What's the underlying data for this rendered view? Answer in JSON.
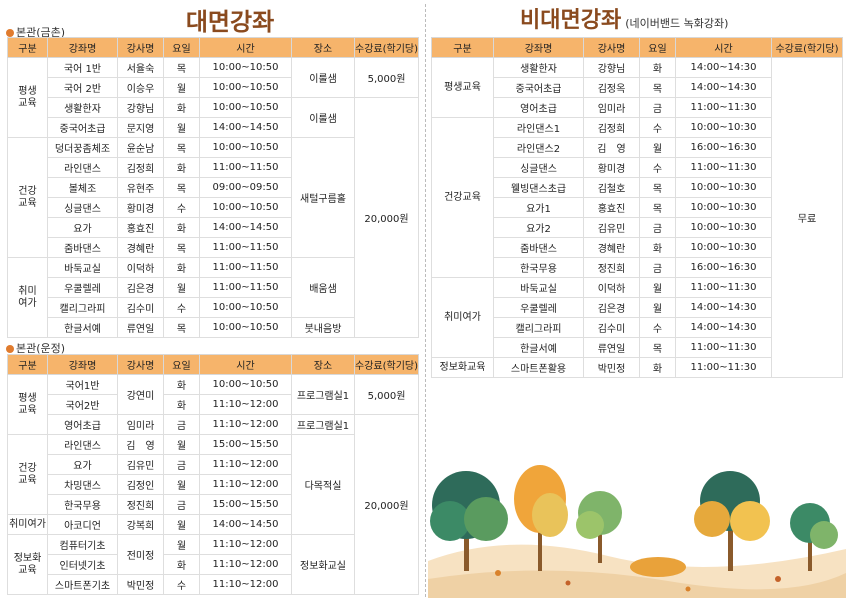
{
  "titles": {
    "face_to_face": "대면강좌",
    "online": "비대면강좌",
    "online_sub": "(네이버밴드 녹화강좌)"
  },
  "branches": {
    "geumchon": "본관(금촌)",
    "unjeong": "본관(운정)"
  },
  "headers": {
    "gubun": "구분",
    "course": "강좌명",
    "teacher": "강사명",
    "day": "요일",
    "time": "시간",
    "place": "장소",
    "fee": "수강료(학기당)"
  },
  "geumchon": {
    "categories": [
      "평생\n교육",
      "건강\n교육",
      "취미\n여가"
    ],
    "rows": [
      [
        "국어 1반",
        "서율숙",
        "목",
        "10:00~10:50"
      ],
      [
        "국어 2반",
        "이승우",
        "월",
        "10:00~10:50"
      ],
      [
        "생활한자",
        "강향님",
        "화",
        "10:00~10:50"
      ],
      [
        "중국어초급",
        "문지영",
        "월",
        "14:00~14:50"
      ],
      [
        "덩더꿍좀체조",
        "윤순남",
        "목",
        "10:00~10:50"
      ],
      [
        "라인댄스",
        "김정희",
        "화",
        "11:00~11:50"
      ],
      [
        "볼체조",
        "유현주",
        "목",
        "09:00~09:50"
      ],
      [
        "싱글댄스",
        "황미경",
        "수",
        "10:00~10:50"
      ],
      [
        "요가",
        "홍효진",
        "화",
        "14:00~14:50"
      ],
      [
        "줌바댄스",
        "경혜란",
        "목",
        "11:00~11:50"
      ],
      [
        "바둑교실",
        "이덕하",
        "화",
        "11:00~11:50"
      ],
      [
        "우쿨렐레",
        "김은경",
        "월",
        "11:00~11:50"
      ],
      [
        "캘리그라피",
        "김수미",
        "수",
        "10:00~10:50"
      ],
      [
        "한글서예",
        "류연일",
        "목",
        "10:00~10:50"
      ]
    ],
    "places": [
      "이룰샘",
      "이룰샘",
      "새털구름홀",
      "배움샘",
      "붓내음방"
    ],
    "fees": [
      "5,000원",
      "20,000원"
    ]
  },
  "unjeong": {
    "categories": [
      "평생\n교육",
      "건강\n교육",
      "취미여가",
      "정보화\n교육"
    ],
    "rows": [
      [
        "국어1반",
        "화",
        "10:00~10:50"
      ],
      [
        "국어2반",
        "화",
        "11:10~12:00"
      ],
      [
        "영어초급",
        "임미라",
        "금",
        "11:10~12:00"
      ],
      [
        "라인댄스",
        "김　영",
        "월",
        "15:00~15:50"
      ],
      [
        "요가",
        "김유민",
        "금",
        "11:10~12:00"
      ],
      [
        "차밍댄스",
        "김정인",
        "월",
        "11:10~12:00"
      ],
      [
        "한국무용",
        "정진희",
        "금",
        "15:00~15:50"
      ],
      [
        "아코디언",
        "강복희",
        "월",
        "14:00~14:50"
      ],
      [
        "컴퓨터기초",
        "월",
        "11:10~12:00"
      ],
      [
        "인터넷기초",
        "화",
        "11:10~12:00"
      ],
      [
        "스마트폰기초",
        "박민정",
        "수",
        "11:10~12:00"
      ]
    ],
    "teacher_shared_1": "강연미",
    "teacher_shared_2": "전미정",
    "places": [
      "프로그램실1",
      "프로그램실1",
      "다목적실",
      "정보화교실"
    ],
    "fees": [
      "5,000원",
      "20,000원"
    ]
  },
  "online": {
    "categories": [
      "평생교육",
      "건강교육",
      "취미여가",
      "정보화교육"
    ],
    "rows": [
      [
        "생활한자",
        "강향님",
        "화",
        "14:00~14:30"
      ],
      [
        "중국어초급",
        "김정옥",
        "목",
        "14:00~14:30"
      ],
      [
        "영어초급",
        "임미라",
        "금",
        "11:00~11:30"
      ],
      [
        "라인댄스1",
        "김정희",
        "수",
        "10:00~10:30"
      ],
      [
        "라인댄스2",
        "김　영",
        "월",
        "16:00~16:30"
      ],
      [
        "싱글댄스",
        "황미경",
        "수",
        "11:00~11:30"
      ],
      [
        "웰빙댄스초급",
        "김철호",
        "목",
        "10:00~10:30"
      ],
      [
        "요가1",
        "홍효진",
        "목",
        "10:00~10:30"
      ],
      [
        "요가2",
        "김유민",
        "금",
        "10:00~10:30"
      ],
      [
        "줌바댄스",
        "경혜란",
        "화",
        "10:00~10:30"
      ],
      [
        "한국무용",
        "정진희",
        "금",
        "16:00~16:30"
      ],
      [
        "바둑교실",
        "이덕하",
        "월",
        "11:00~11:30"
      ],
      [
        "우쿨렐레",
        "김은경",
        "월",
        "14:00~14:30"
      ],
      [
        "캘리그라피",
        "김수미",
        "수",
        "14:00~14:30"
      ],
      [
        "한글서예",
        "류연일",
        "목",
        "11:00~11:30"
      ],
      [
        "스마트폰활용",
        "박민정",
        "화",
        "11:00~11:30"
      ]
    ],
    "fee": "무료"
  },
  "colors": {
    "header": "#f6b46b",
    "title": "#8a4a1e",
    "accent": "#e07b2e"
  }
}
